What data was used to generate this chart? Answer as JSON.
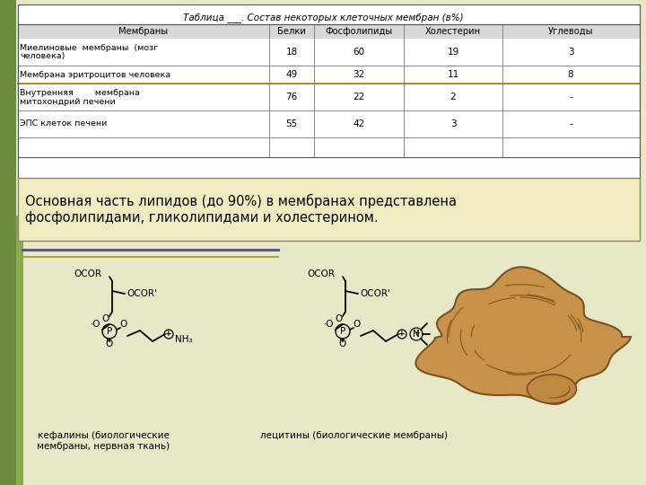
{
  "title": "Таблица ___. Состав некоторых клеточных мембран (в%)",
  "col_headers": [
    "Мембраны",
    "Белки",
    "Фосфолипиды",
    "Холестерин",
    "Углеводы"
  ],
  "rows": [
    [
      "Миелиновые  мембраны  (мозг\nчеловека)",
      "18",
      "60",
      "19",
      "3"
    ],
    [
      "Мембрана эритроцитов человека",
      "49",
      "32",
      "11",
      "8"
    ],
    [
      "Внутренняя        мембрана\nмитохондрий печени",
      "76",
      "22",
      "2",
      "-"
    ],
    [
      "ЭПС клеток печени",
      "55",
      "42",
      "3",
      "-"
    ]
  ],
  "note_text": "Основная часть липидов (до 90%) в мембранах представлена\nфосфолипидами, гликолипидами и холестерином.",
  "label_kephalin": "кефалины (биологические\nмембраны, нервная ткань)",
  "label_lecithin": "лецитины (биологические мембраны)",
  "bg_color": "#e8e8c8",
  "table_bg": "#ffffff",
  "note_bg": "#f0ecc0",
  "line_color1": "#5555aa",
  "line_color2": "#aaaa44",
  "header_row_color": "#d8d8d8",
  "highlight_row_color": "#c8a840",
  "left_stripe_color": "#6b8c3a",
  "left_stripe2_color": "#8aaa50"
}
